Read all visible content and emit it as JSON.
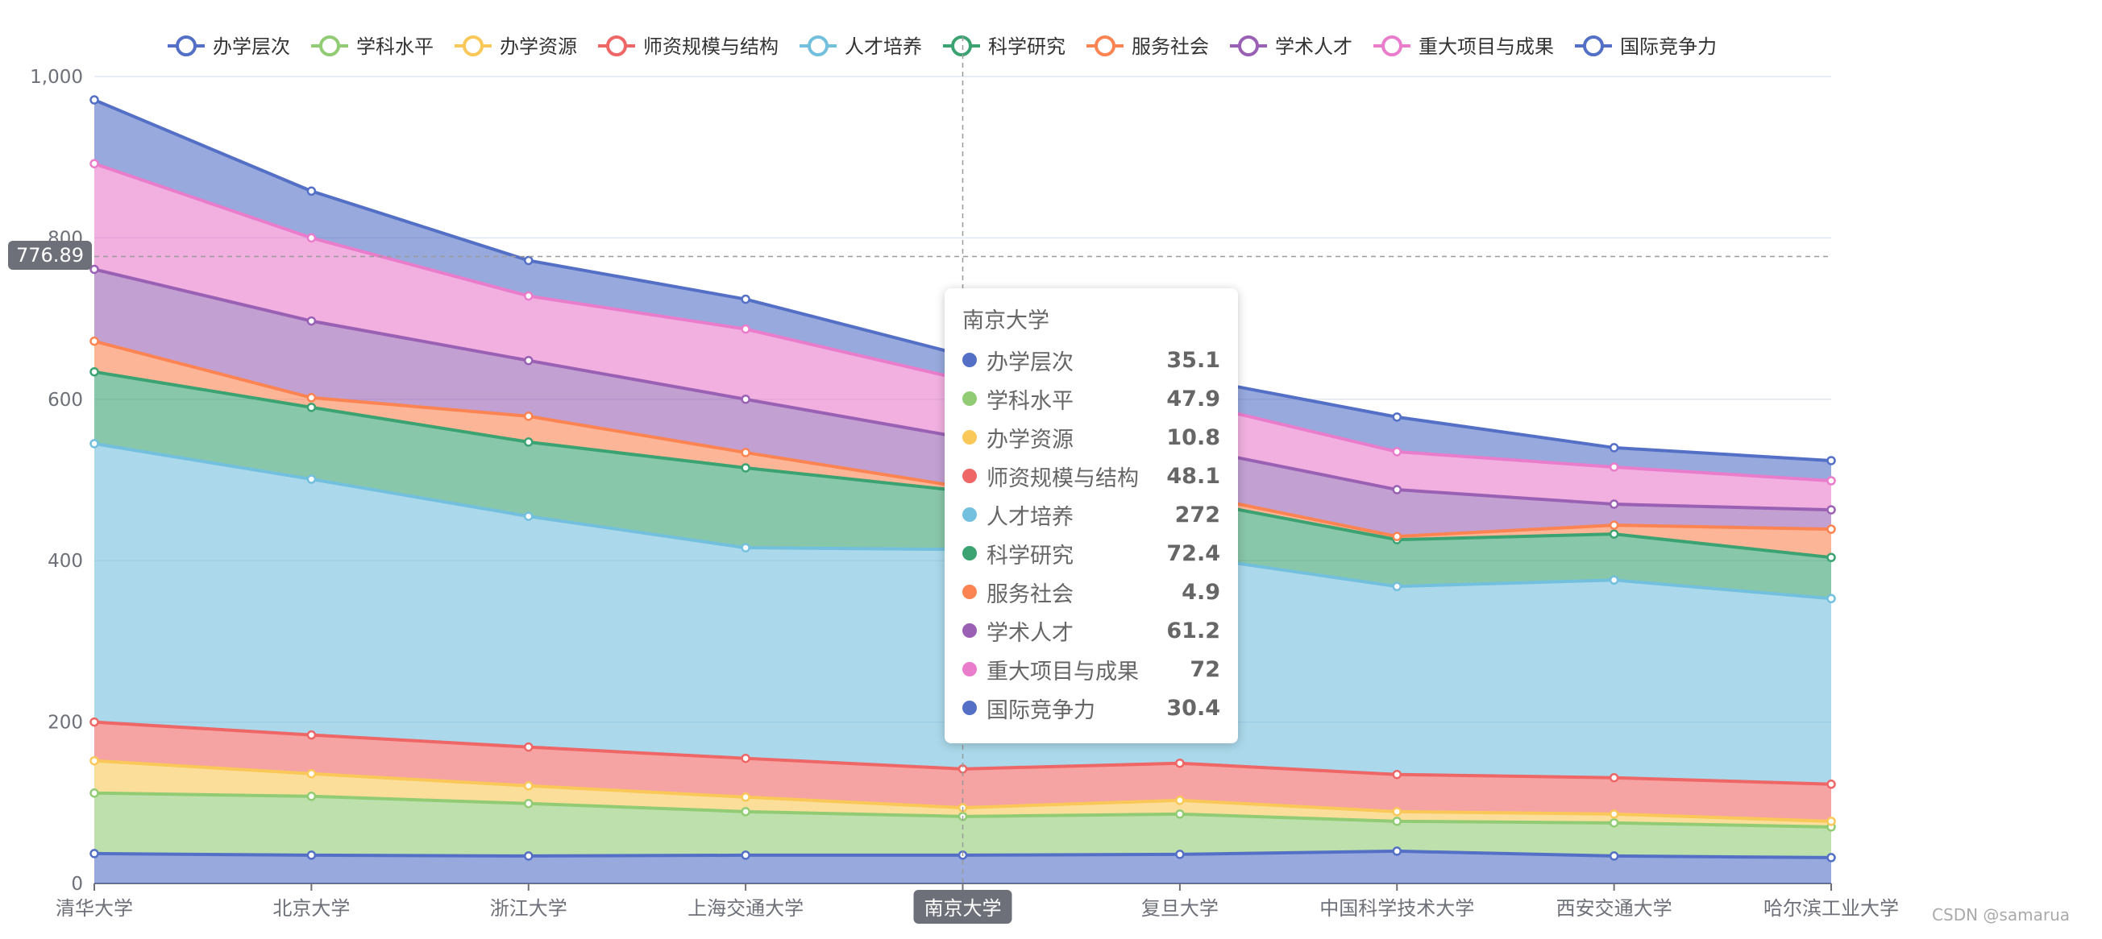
{
  "chart_data": {
    "type": "area",
    "stacked": true,
    "categories": [
      "清华大学",
      "北京大学",
      "浙江大学",
      "上海交通大学",
      "南京大学",
      "复旦大学",
      "中国科学技术大学",
      "西安交通大学",
      "哈尔滨工业大学"
    ],
    "ylim": [
      0,
      1000
    ],
    "yticks": [
      0,
      200,
      400,
      600,
      800,
      1000
    ],
    "yticks_labels": [
      "0",
      "200",
      "400",
      "600",
      "800",
      "1,000"
    ],
    "grid": true,
    "legend_position": "top",
    "series": [
      {
        "name": "办学层次",
        "color": "#5470c6",
        "values": [
          37,
          35,
          34,
          35,
          35.1,
          36,
          40,
          34,
          32
        ]
      },
      {
        "name": "学科水平",
        "color": "#91cc75",
        "values": [
          75,
          73,
          65,
          54,
          47.9,
          50,
          37,
          41,
          38
        ]
      },
      {
        "name": "办学资源",
        "color": "#fac858",
        "values": [
          40,
          28,
          22,
          18,
          10.8,
          17,
          12,
          11,
          7
        ]
      },
      {
        "name": "师资规模与结构",
        "color": "#ee6666",
        "values": [
          48,
          48,
          48,
          48,
          48.1,
          46,
          46,
          45,
          46
        ]
      },
      {
        "name": "人才培养",
        "color": "#73c0de",
        "values": [
          345,
          317,
          286,
          261,
          272,
          258,
          233,
          245,
          230
        ]
      },
      {
        "name": "科学研究",
        "color": "#3ba272",
        "values": [
          89,
          89,
          92,
          99,
          72.4,
          70,
          58,
          57,
          51
        ]
      },
      {
        "name": "服务社会",
        "color": "#fc8452",
        "values": [
          38,
          12,
          32,
          19,
          4.9,
          8,
          4,
          11,
          35
        ]
      },
      {
        "name": "学术人才",
        "color": "#9a60b4",
        "values": [
          89,
          95,
          69,
          66,
          61.2,
          57,
          58,
          26,
          24
        ]
      },
      {
        "name": "重大项目与成果",
        "color": "#ea7ccc",
        "values": [
          131,
          103,
          80,
          87,
          72,
          57,
          47,
          46,
          36
        ]
      },
      {
        "name": "国际竞争力",
        "color": "#5470c6",
        "values": [
          79,
          58,
          44,
          37,
          30.4,
          30,
          43,
          24,
          25
        ]
      }
    ],
    "highlighted_category_index": 4,
    "axis_pointer_value_label": "776.89",
    "axis_pointer_value": 776.89
  },
  "tooltip": {
    "title": "南京大学",
    "rows": [
      {
        "name": "办学层次",
        "value": "35.1",
        "color": "#5470c6"
      },
      {
        "name": "学科水平",
        "value": "47.9",
        "color": "#91cc75"
      },
      {
        "name": "办学资源",
        "value": "10.8",
        "color": "#fac858"
      },
      {
        "name": "师资规模与结构",
        "value": "48.1",
        "color": "#ee6666"
      },
      {
        "name": "人才培养",
        "value": "272",
        "color": "#73c0de"
      },
      {
        "name": "科学研究",
        "value": "72.4",
        "color": "#3ba272"
      },
      {
        "name": "服务社会",
        "value": "4.9",
        "color": "#fc8452"
      },
      {
        "name": "学术人才",
        "value": "61.2",
        "color": "#9a60b4"
      },
      {
        "name": "重大项目与成果",
        "value": "72",
        "color": "#ea7ccc"
      },
      {
        "name": "国际竞争力",
        "value": "30.4",
        "color": "#5470c6"
      }
    ]
  },
  "watermark": "CSDN @samarua"
}
